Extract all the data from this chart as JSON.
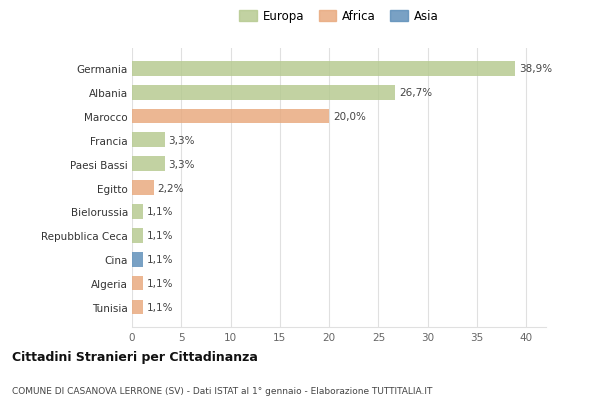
{
  "countries": [
    "Germania",
    "Albania",
    "Marocco",
    "Francia",
    "Paesi Bassi",
    "Egitto",
    "Bielorussia",
    "Repubblica Ceca",
    "Cina",
    "Algeria",
    "Tunisia"
  ],
  "values": [
    38.9,
    26.7,
    20.0,
    3.3,
    3.3,
    2.2,
    1.1,
    1.1,
    1.1,
    1.1,
    1.1
  ],
  "labels": [
    "38,9%",
    "26,7%",
    "20,0%",
    "3,3%",
    "3,3%",
    "2,2%",
    "1,1%",
    "1,1%",
    "1,1%",
    "1,1%",
    "1,1%"
  ],
  "categories": [
    "Europa",
    "Africa",
    "Asia"
  ],
  "colors": {
    "Europa": "#b5c98e",
    "Africa": "#e8a87c",
    "Asia": "#5b8db8"
  },
  "bar_colors": [
    "Europa",
    "Europa",
    "Africa",
    "Europa",
    "Europa",
    "Africa",
    "Europa",
    "Europa",
    "Asia",
    "Africa",
    "Africa"
  ],
  "title": "Cittadini Stranieri per Cittadinanza",
  "subtitle": "COMUNE DI CASANOVA LERRONE (SV) - Dati ISTAT al 1° gennaio - Elaborazione TUTTITALIA.IT",
  "xlim": [
    0,
    42
  ],
  "xticks": [
    0,
    5,
    10,
    15,
    20,
    25,
    30,
    35,
    40
  ],
  "background_color": "#ffffff",
  "grid_color": "#e0e0e0",
  "bar_alpha": 0.82
}
